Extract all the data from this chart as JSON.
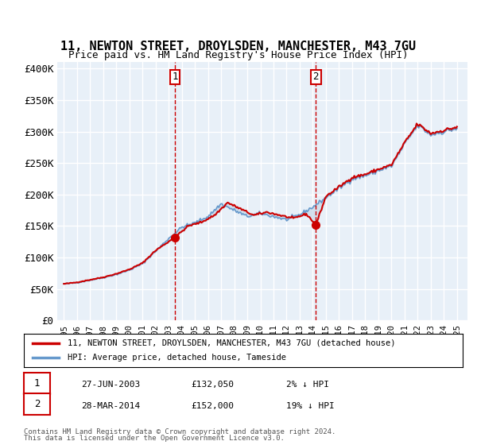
{
  "title": "11, NEWTON STREET, DROYLSDEN, MANCHESTER, M43 7GU",
  "subtitle": "Price paid vs. HM Land Registry's House Price Index (HPI)",
  "ylabel": "",
  "ylim": [
    0,
    410000
  ],
  "yticks": [
    0,
    50000,
    100000,
    150000,
    200000,
    250000,
    300000,
    350000,
    400000
  ],
  "ytick_labels": [
    "£0",
    "£50K",
    "£100K",
    "£150K",
    "£200K",
    "£250K",
    "£300K",
    "£350K",
    "£400K"
  ],
  "background_color": "#ffffff",
  "plot_bg_color": "#e8f0f8",
  "grid_color": "#ffffff",
  "line1_color": "#cc0000",
  "line2_color": "#6699cc",
  "fill_color": "#c8d8e8",
  "sale1_date": "2003-06-27",
  "sale1_price": 132050,
  "sale2_date": "2014-03-28",
  "sale2_price": 152000,
  "legend_label1": "11, NEWTON STREET, DROYLSDEN, MANCHESTER, M43 7GU (detached house)",
  "legend_label2": "HPI: Average price, detached house, Tameside",
  "footer1": "Contains HM Land Registry data © Crown copyright and database right 2024.",
  "footer2": "This data is licensed under the Open Government Licence v3.0.",
  "sale_label1": "1",
  "sale_label2": "2",
  "sale_info1": "27-JUN-2003          £132,050          2% ↓ HPI",
  "sale_info2": "28-MAR-2014          £152,000          19% ↓ HPI"
}
